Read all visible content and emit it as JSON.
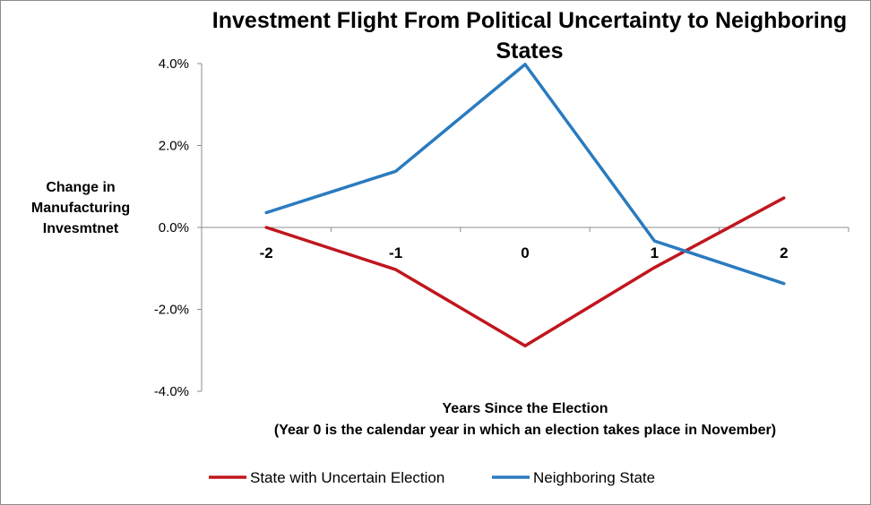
{
  "chart_data": {
    "type": "line",
    "title_lines": [
      "Investment Flight From Political Uncertainty to Neighboring",
      "States"
    ],
    "ylabel_lines": [
      "Change in",
      "Manufacturing",
      "Invesmtnet"
    ],
    "xlabel_lines": [
      "Years Since the Election",
      "(Year 0 is the calendar year in which an election takes place in November)"
    ],
    "categories": [
      "-2",
      "-1",
      "0",
      "1",
      "2"
    ],
    "ylim": [
      -0.04,
      0.04
    ],
    "yticks": [
      0.04,
      0.02,
      0.0,
      -0.02,
      -0.04
    ],
    "ytick_labels": [
      "4.0%",
      "2.0%",
      "0.0%",
      "-2.0%",
      "-4.0%"
    ],
    "grid": false,
    "legend_position": "bottom",
    "series": [
      {
        "name": "State with Uncertain Election",
        "color": "#C0161E",
        "values": [
          0.0,
          -0.0103,
          -0.0289,
          -0.0098,
          0.0072
        ]
      },
      {
        "name": "Neighboring State",
        "color": "#2A7BBF",
        "values": [
          0.0036,
          0.0137,
          0.0398,
          -0.0033,
          -0.0137
        ]
      }
    ]
  }
}
